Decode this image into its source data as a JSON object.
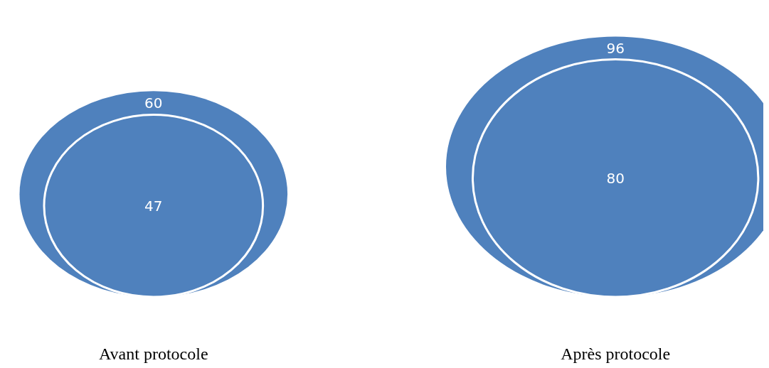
{
  "chart_data": {
    "type": "other",
    "categories": [
      "Avant protocole",
      "Après protocole"
    ],
    "series": [
      {
        "color": "#4f81bd",
        "values": [
          60,
          96
        ]
      },
      {
        "color": "#4f81bd",
        "values": [
          47,
          80
        ]
      }
    ],
    "data_labels": true
  }
}
